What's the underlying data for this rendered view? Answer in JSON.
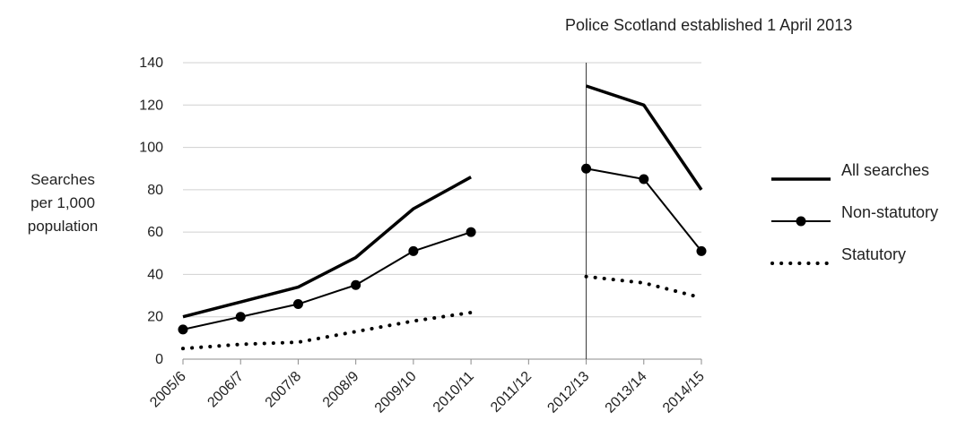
{
  "chart_data": {
    "type": "line",
    "title": "",
    "xlabel": "",
    "ylabel_lines": [
      "Searches",
      "per 1,000",
      "population"
    ],
    "ylim": [
      0,
      140
    ],
    "yticks": [
      0,
      20,
      40,
      60,
      80,
      100,
      120,
      140
    ],
    "categories": [
      "2005/6",
      "2006/7",
      "2007/8",
      "2008/9",
      "2009/10",
      "2010/11",
      "2011/12",
      "2012/13",
      "2013/14",
      "2014/15"
    ],
    "grid": true,
    "legend_position": "right",
    "annotation": {
      "text": "Police Scotland established 1 April 2013",
      "at_category": "2012/13"
    },
    "series": [
      {
        "name": "All searches",
        "style": "thick-line",
        "color": "#000000",
        "values": [
          20,
          27,
          34,
          48,
          71,
          86,
          null,
          129,
          120,
          80
        ]
      },
      {
        "name": "Non-statutory",
        "style": "line-with-dots",
        "color": "#000000",
        "values": [
          14,
          20,
          26,
          35,
          51,
          60,
          null,
          90,
          85,
          51
        ]
      },
      {
        "name": "Statutory",
        "style": "dotted",
        "color": "#000000",
        "values": [
          5,
          7,
          8,
          13,
          18,
          22,
          null,
          39,
          36,
          29
        ]
      }
    ]
  }
}
